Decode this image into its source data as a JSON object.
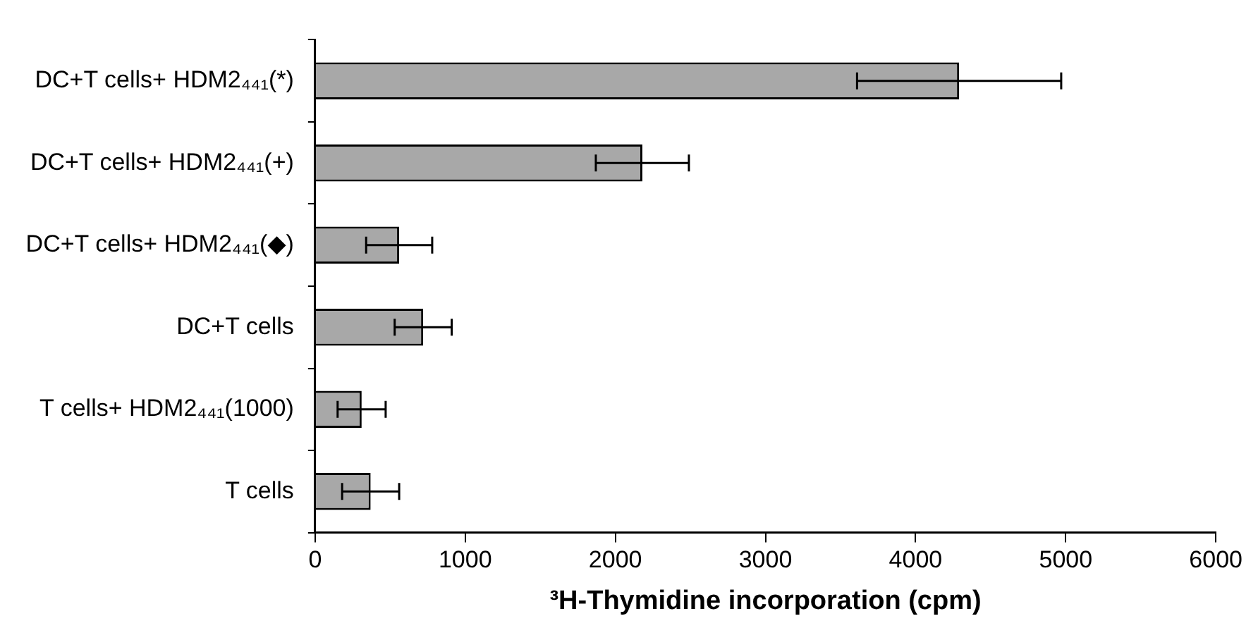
{
  "chart_data": {
    "type": "bar",
    "orientation": "horizontal",
    "xlabel": "³H-Thymidine incorporation (cpm)",
    "categories": [
      "DC+T cells+ HDM2₄₄₁(*)",
      "DC+T cells+ HDM2₄₄₁(+)",
      "DC+T cells+ HDM2₄₄₁(◆)",
      "DC+T cells",
      "T cells+ HDM2₄₄₁(1000)",
      "T cells"
    ],
    "values": [
      4290,
      2180,
      560,
      720,
      310,
      370
    ],
    "errors": [
      680,
      310,
      220,
      190,
      160,
      190
    ],
    "color": "#a8a8a8",
    "xlim": [
      0,
      6000
    ],
    "xticks": [
      0,
      1000,
      2000,
      3000,
      4000,
      5000,
      6000
    ],
    "grid": false,
    "legend": false
  }
}
